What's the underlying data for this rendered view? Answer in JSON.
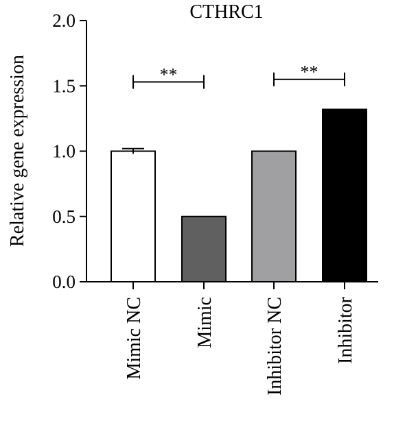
{
  "chart_data": {
    "type": "bar",
    "title": "CTHRC1",
    "ylabel": "Relative gene expression",
    "xlabel": "",
    "ylim": [
      0,
      2.0
    ],
    "yticks": [
      "0.0",
      "0.5",
      "1.0",
      "1.5",
      "2.0"
    ],
    "yticks_values": [
      0,
      0.5,
      1.0,
      1.5,
      2.0
    ],
    "categories": [
      "Mimic NC",
      "Mimic",
      "Inhibitor NC",
      "Inhibitor"
    ],
    "values": [
      1.0,
      0.5,
      1.0,
      1.32
    ],
    "error": [
      0.02,
      0,
      0,
      0
    ],
    "colors": [
      "#ffffff",
      "#606060",
      "#a0a0a3",
      "#000000"
    ],
    "significance": [
      {
        "from": 0,
        "to": 1,
        "label": "**",
        "y": 1.53
      },
      {
        "from": 2,
        "to": 3,
        "label": "**",
        "y": 1.55
      }
    ],
    "grid": false,
    "legend": "none"
  }
}
